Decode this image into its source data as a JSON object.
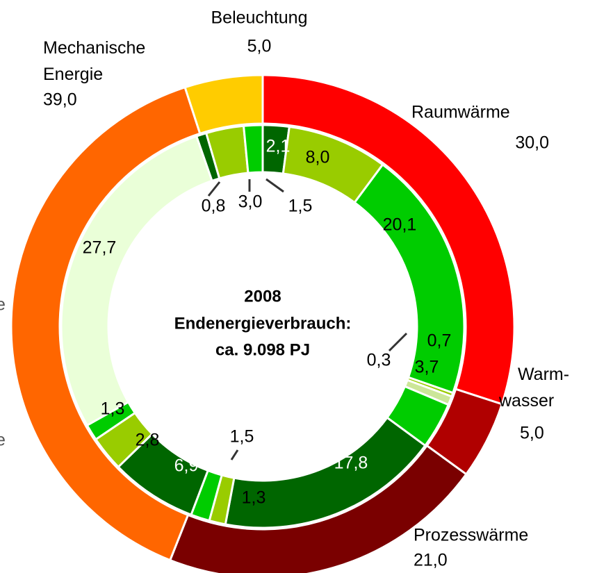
{
  "chart_data": {
    "type": "nested-donut",
    "center_text": [
      "2008",
      "Endenergieverbrauch:",
      "ca. 9.098 PJ"
    ],
    "annotations": [
      "e",
      "e"
    ],
    "outer": {
      "categories": [
        "Raumwärme",
        "Warm-\nwasser",
        "Prozesswärme",
        "Mechanische\nEnergie",
        "Beleuchtung"
      ],
      "values": [
        30.0,
        5.0,
        21.0,
        39.0,
        5.0
      ],
      "value_labels": [
        "30,0",
        "5,0",
        "21,0",
        "39,0",
        "5,0"
      ],
      "colors": [
        "#ff0000",
        "#b00000",
        "#7a0000",
        "#ff6600",
        "#ffcc00"
      ]
    },
    "inner": {
      "values": [
        2.1,
        8.0,
        20.1,
        0.3,
        0.7,
        3.7,
        17.8,
        1.3,
        1.5,
        6.9,
        2.8,
        1.3,
        27.7,
        0.8,
        3.0,
        1.5
      ],
      "value_labels": [
        "2,1",
        "8,0",
        "20,1",
        "0,3",
        "0,7",
        "3,7",
        "17,8",
        "1,3",
        "1,5",
        "6,9",
        "2,8",
        "1,3",
        "27,7",
        "0,8",
        "3,0",
        "1,5"
      ],
      "colors": [
        "#006600",
        "#99cc00",
        "#00cc00",
        "#99cc00",
        "#cce699",
        "#00cc00",
        "#006600",
        "#99cc00",
        "#00cc00",
        "#006600",
        "#99cc00",
        "#00cc00",
        "#eaffd8",
        "#006600",
        "#99cc00",
        "#00cc00"
      ]
    }
  }
}
